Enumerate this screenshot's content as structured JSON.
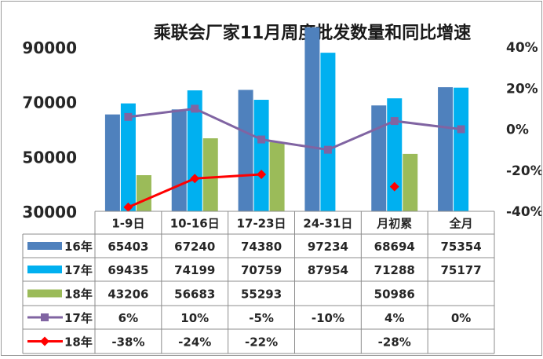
{
  "chart_data": {
    "type": "bar",
    "title": "乘联会厂家11月周度批发数量和同比增速",
    "categories": [
      "1-9日",
      "10-16日",
      "17-23日",
      "24-31日",
      "月初累",
      "全月"
    ],
    "left_axis": {
      "min": 30000,
      "max": 90000,
      "ticks": [
        "90000",
        "70000",
        "50000",
        "30000"
      ]
    },
    "right_axis": {
      "min": -0.4,
      "max": 0.4,
      "ticks": [
        "40%",
        "20%",
        "0%",
        "-20%",
        "-40%"
      ]
    },
    "bar_series": [
      {
        "name": "16年",
        "color": "#4F81BD",
        "values": [
          65403,
          67240,
          74380,
          97234,
          68694,
          75354
        ],
        "labels": [
          "65403",
          "67240",
          "74380",
          "97234",
          "68694",
          "75354"
        ]
      },
      {
        "name": "17年",
        "color": "#00B0F0",
        "values": [
          69435,
          74199,
          70759,
          87954,
          71288,
          75177
        ],
        "labels": [
          "69435",
          "74199",
          "70759",
          "87954",
          "71288",
          "75177"
        ]
      },
      {
        "name": "18年",
        "color": "#9BBB59",
        "values": [
          43206,
          56683,
          55293,
          null,
          50986,
          null
        ],
        "labels": [
          "43206",
          "56683",
          "55293",
          "",
          "50986",
          ""
        ]
      }
    ],
    "line_series": [
      {
        "name": "17年",
        "color": "#8064A2",
        "marker": "square",
        "connect_points": 6,
        "values": [
          0.06,
          0.1,
          -0.05,
          -0.1,
          0.04,
          0.0
        ],
        "labels": [
          "6%",
          "10%",
          "-5%",
          "-10%",
          "4%",
          "0%"
        ]
      },
      {
        "name": "18年",
        "color": "#FF0000",
        "marker": "diamond",
        "connect_points": 3,
        "values": [
          -0.38,
          -0.24,
          -0.22,
          null,
          -0.28,
          null
        ],
        "labels": [
          "-38%",
          "-24%",
          "-22%",
          "",
          "-28%",
          ""
        ]
      }
    ],
    "legend": "data-table"
  }
}
